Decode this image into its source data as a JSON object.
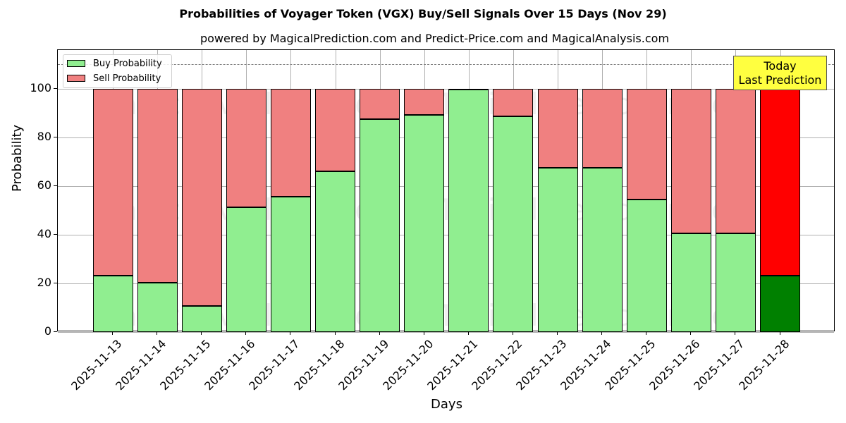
{
  "header": {
    "title": "Probabilities of Voyager Token (VGX) Buy/Sell Signals Over 15 Days (Nov 29)",
    "subtitle": "powered by MagicalPrediction.com and Predict-Price.com and MagicalAnalysis.com"
  },
  "axes": {
    "xlabel": "Days",
    "ylabel": "Probability",
    "yticks": [
      "0",
      "20",
      "40",
      "60",
      "80",
      "100"
    ]
  },
  "legend": {
    "buy_label": "Buy Probability",
    "sell_label": "Sell Probability"
  },
  "annotation": {
    "line1": "Today",
    "line2": "Last Prediction"
  },
  "watermarks": [
    "MagicalAnalysis.com",
    "MagicalPrediction.com"
  ],
  "colors": {
    "buy": "#90ee90",
    "sell": "#f08080",
    "today_buy": "#008000",
    "today_sell": "#ff0000",
    "annotation_bg": "#ffff40"
  },
  "chart_data": {
    "type": "bar",
    "stacked": true,
    "title": "Probabilities of Voyager Token (VGX) Buy/Sell Signals Over 15 Days (Nov 29)",
    "subtitle": "powered by MagicalPrediction.com and Predict-Price.com and MagicalAnalysis.com",
    "xlabel": "Days",
    "ylabel": "Probability",
    "ylim": [
      0,
      115
    ],
    "yticks": [
      0,
      20,
      40,
      60,
      80,
      100
    ],
    "grid": true,
    "legend_position": "upper left",
    "reference_line": {
      "y": 110,
      "style": "dashed",
      "color": "#808080"
    },
    "categories": [
      "2025-11-13",
      "2025-11-14",
      "2025-11-15",
      "2025-11-16",
      "2025-11-17",
      "2025-11-18",
      "2025-11-19",
      "2025-11-20",
      "2025-11-21",
      "2025-11-22",
      "2025-11-23",
      "2025-11-24",
      "2025-11-25",
      "2025-11-26",
      "2025-11-27",
      "2025-11-28"
    ],
    "series": [
      {
        "name": "Buy Probability",
        "values": [
          23.1,
          20.2,
          10.7,
          51.3,
          55.5,
          66.1,
          87.4,
          89.3,
          99.9,
          88.7,
          67.4,
          67.4,
          54.4,
          40.5,
          40.5,
          23.2
        ]
      },
      {
        "name": "Sell Probability",
        "values": [
          76.9,
          79.8,
          89.3,
          48.7,
          44.5,
          33.9,
          12.6,
          10.7,
          0.1,
          11.3,
          32.6,
          32.6,
          45.6,
          59.5,
          59.5,
          76.8
        ]
      }
    ],
    "annotations": [
      {
        "text": "Today\nLast Prediction",
        "x": "2025-11-28"
      }
    ]
  }
}
